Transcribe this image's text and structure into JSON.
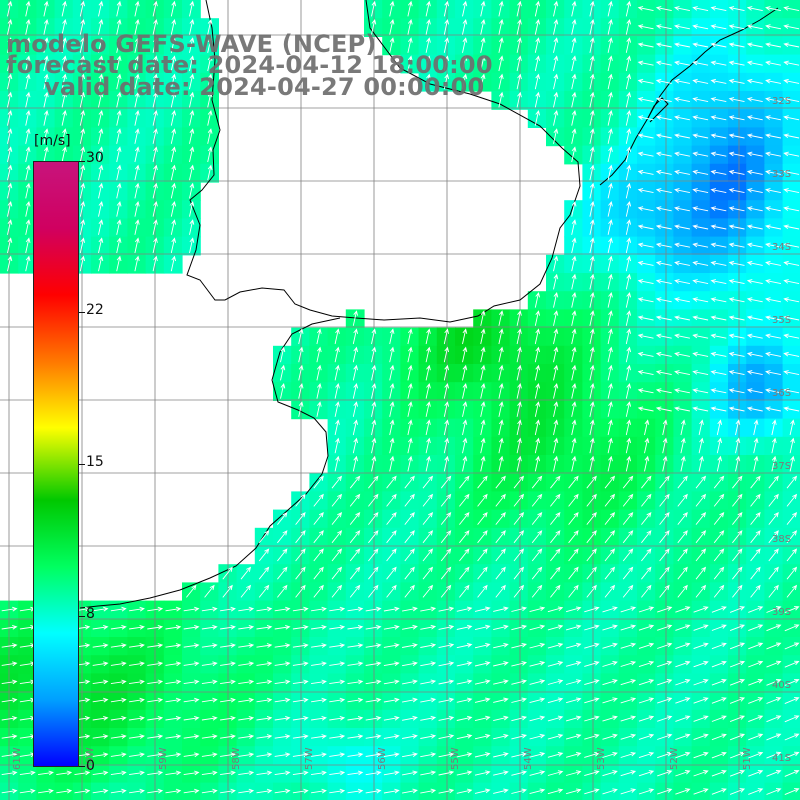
{
  "title": {
    "line1": "modelo GEFS-WAVE (NCEP)",
    "line2": "forecast date: 2024-04-12 18:00:00",
    "line3": "valid date: 2024-04-27 00:00:00"
  },
  "colorbar": {
    "unit": "[m/s]",
    "ticks": [
      "30",
      "22",
      "15",
      "8",
      "0"
    ],
    "tick_values": [
      30,
      22,
      15,
      8,
      0
    ],
    "range": [
      0,
      30
    ],
    "stops": [
      "#0000ff",
      "#00a0ff",
      "#00ffff",
      "#00ff60",
      "#00c800",
      "#ffff00",
      "#ff7800",
      "#ff0000",
      "#d00060",
      "#c8147c"
    ]
  },
  "map": {
    "lat_labels": [
      "32S",
      "33S",
      "34S",
      "35S",
      "36S",
      "37S",
      "38S",
      "39S",
      "40S",
      "41S"
    ],
    "lon_labels": [
      "61W",
      "60W",
      "59W",
      "58W",
      "57W",
      "56W",
      "55W",
      "54W",
      "53W",
      "52W",
      "51W"
    ],
    "colors": {
      "land": "#ffffff",
      "coast": "#000000",
      "grid": "#808080",
      "arrow": "#ffffff",
      "title": "#6e6e6e"
    }
  }
}
